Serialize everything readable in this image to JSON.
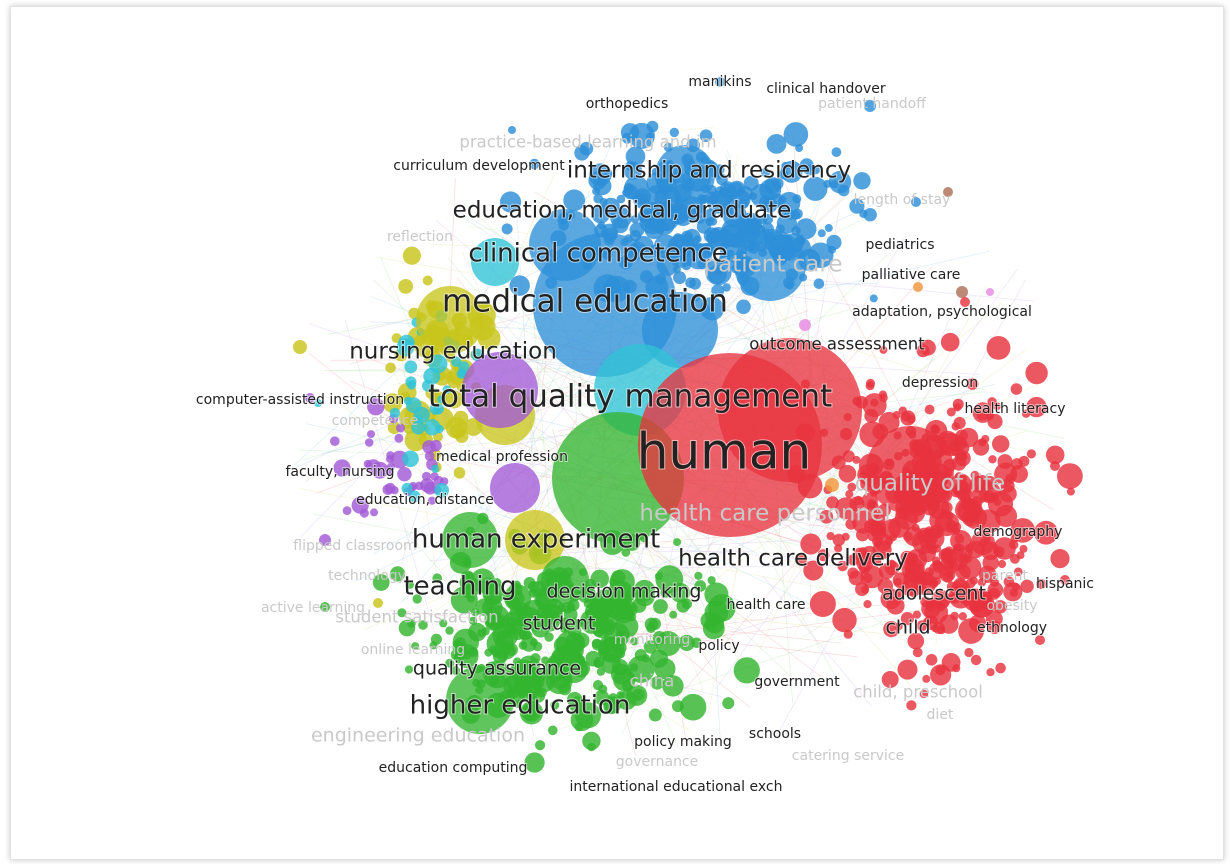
{
  "colors": {
    "red": "#e8333f",
    "green": "#33b52f",
    "blue": "#2d8fd8",
    "yellow": "#c8c51c",
    "purple": "#a25ad6",
    "cyan": "#2fc3d6",
    "brown": "#b0705a",
    "orange": "#f0963a",
    "pink": "#e58ae0",
    "label_dark": "#222222",
    "label_faint": "#c9c9c9"
  },
  "labels": [
    {
      "text": "manikins",
      "weight": 1,
      "faint": false
    },
    {
      "text": "clinical handover",
      "weight": 1,
      "faint": false
    },
    {
      "text": "orthopedics",
      "weight": 1,
      "faint": false
    },
    {
      "text": "patient handoff",
      "weight": 1,
      "faint": true
    },
    {
      "text": "practice-based learning and im",
      "weight": 2,
      "faint": true
    },
    {
      "text": "curriculum development",
      "weight": 1,
      "faint": false
    },
    {
      "text": "internship and residency",
      "weight": 4,
      "faint": false
    },
    {
      "text": "length of stay",
      "weight": 1,
      "faint": true
    },
    {
      "text": "education, medical, graduate",
      "weight": 4,
      "faint": false
    },
    {
      "text": "reflection",
      "weight": 1,
      "faint": true
    },
    {
      "text": "clinical competence",
      "weight": 5,
      "faint": false
    },
    {
      "text": "patient care",
      "weight": 4,
      "faint": true
    },
    {
      "text": "pediatrics",
      "weight": 1,
      "faint": false
    },
    {
      "text": "palliative care",
      "weight": 1,
      "faint": false
    },
    {
      "text": "medical education",
      "weight": 6,
      "faint": false
    },
    {
      "text": "adaptation, psychological",
      "weight": 1,
      "faint": false
    },
    {
      "text": "nursing education",
      "weight": 4,
      "faint": false
    },
    {
      "text": "outcome assessment",
      "weight": 2,
      "faint": false
    },
    {
      "text": "depression",
      "weight": 1,
      "faint": false
    },
    {
      "text": "total quality management",
      "weight": 6,
      "faint": false
    },
    {
      "text": "computer-assisted instruction",
      "weight": 1,
      "faint": false
    },
    {
      "text": "health literacy",
      "weight": 1,
      "faint": false
    },
    {
      "text": "competence",
      "weight": 1,
      "faint": true
    },
    {
      "text": "human",
      "weight": 8,
      "faint": false
    },
    {
      "text": "medical profession",
      "weight": 1,
      "faint": false
    },
    {
      "text": "faculty, nursing",
      "weight": 1,
      "faint": false
    },
    {
      "text": "quality of life",
      "weight": 4,
      "faint": true
    },
    {
      "text": "education, distance",
      "weight": 1,
      "faint": false
    },
    {
      "text": "health care personnel",
      "weight": 4,
      "faint": true
    },
    {
      "text": "demography",
      "weight": 1,
      "faint": false
    },
    {
      "text": "flipped classroom",
      "weight": 1,
      "faint": true
    },
    {
      "text": "human experiment",
      "weight": 5,
      "faint": false
    },
    {
      "text": "health care delivery",
      "weight": 4,
      "faint": false
    },
    {
      "text": "technology",
      "weight": 1,
      "faint": true
    },
    {
      "text": "parent",
      "weight": 1,
      "faint": true
    },
    {
      "text": "hispanic",
      "weight": 1,
      "faint": false
    },
    {
      "text": "teaching",
      "weight": 5,
      "faint": false
    },
    {
      "text": "decision making",
      "weight": 3,
      "faint": false
    },
    {
      "text": "adolescent",
      "weight": 3,
      "faint": false
    },
    {
      "text": "active learning",
      "weight": 1,
      "faint": true
    },
    {
      "text": "obesity",
      "weight": 1,
      "faint": true
    },
    {
      "text": "health care",
      "weight": 1,
      "faint": false
    },
    {
      "text": "student satisfaction",
      "weight": 2,
      "faint": true
    },
    {
      "text": "student",
      "weight": 3,
      "faint": false
    },
    {
      "text": "child",
      "weight": 3,
      "faint": false
    },
    {
      "text": "ethnology",
      "weight": 1,
      "faint": false
    },
    {
      "text": "monitoring",
      "weight": 1,
      "faint": true
    },
    {
      "text": "policy",
      "weight": 1,
      "faint": false
    },
    {
      "text": "online learning",
      "weight": 1,
      "faint": true
    },
    {
      "text": "quality assurance",
      "weight": 3,
      "faint": false
    },
    {
      "text": "china",
      "weight": 2,
      "faint": true
    },
    {
      "text": "government",
      "weight": 1,
      "faint": false
    },
    {
      "text": "child, preschool",
      "weight": 2,
      "faint": true
    },
    {
      "text": "higher education",
      "weight": 5,
      "faint": false
    },
    {
      "text": "diet",
      "weight": 1,
      "faint": true
    },
    {
      "text": "engineering education",
      "weight": 3,
      "faint": true
    },
    {
      "text": "schools",
      "weight": 1,
      "faint": false
    },
    {
      "text": "policy making",
      "weight": 1,
      "faint": false
    },
    {
      "text": "catering service",
      "weight": 1,
      "faint": true
    },
    {
      "text": "governance",
      "weight": 1,
      "faint": true
    },
    {
      "text": "education computing",
      "weight": 1,
      "faint": false
    },
    {
      "text": "international educational exch",
      "weight": 1,
      "faint": false
    }
  ]
}
